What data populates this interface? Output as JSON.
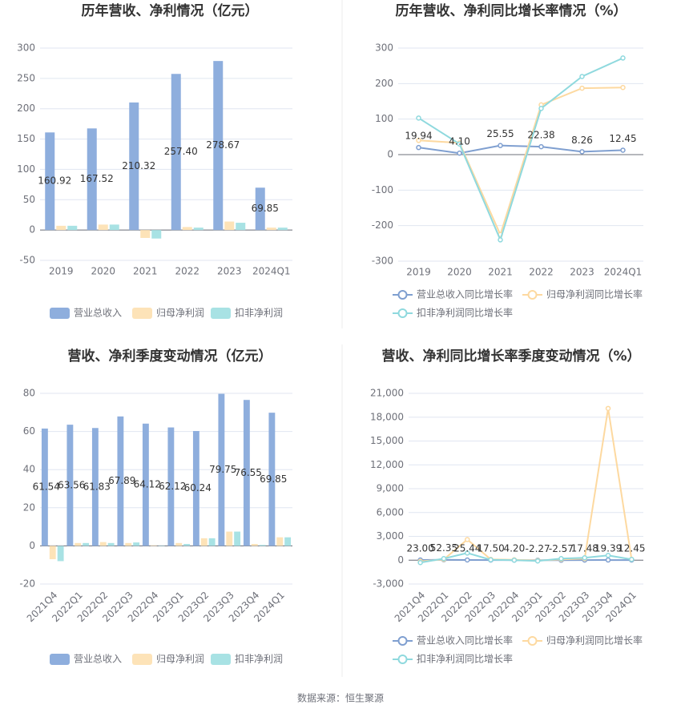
{
  "chart_data": [
    {
      "type": "bar",
      "title": "历年营收、净利情况（亿元）",
      "categories": [
        "2019",
        "2020",
        "2021",
        "2022",
        "2023",
        "2024Q1"
      ],
      "series": [
        {
          "name": "营业总收入",
          "color": "#8eaedd",
          "values": [
            160.92,
            167.52,
            210.32,
            257.4,
            278.67,
            69.85
          ],
          "value_labels": [
            "160.92",
            "167.52",
            "210.32",
            "257.40",
            "278.67",
            "69.85"
          ]
        },
        {
          "name": "归母净利润",
          "color": "#fde3b8",
          "values": [
            7,
            9,
            -13,
            5,
            14,
            4
          ]
        },
        {
          "name": "扣非净利润",
          "color": "#a8e2e4",
          "values": [
            7,
            9,
            -14,
            4,
            12,
            4
          ]
        }
      ],
      "ylim": [
        -50,
        300
      ],
      "yticks": [
        -50,
        0,
        50,
        100,
        150,
        200,
        250,
        300
      ],
      "grid": true
    },
    {
      "type": "line",
      "title": "历年营收、净利同比增长率情况（%）",
      "categories": [
        "2019",
        "2020",
        "2021",
        "2022",
        "2023",
        "2024Q1"
      ],
      "series": [
        {
          "name": "营业总收入同比增长率",
          "color": "#7f9fd0",
          "values": [
            19.94,
            4.1,
            25.55,
            22.38,
            8.26,
            12.45
          ],
          "value_labels": [
            "19.94",
            "4.10",
            "25.55",
            "22.38",
            "8.26",
            "12.45"
          ]
        },
        {
          "name": "归母净利润同比增长率",
          "color": "#fdd9a0",
          "values": [
            40,
            33,
            -225,
            140,
            187,
            189
          ]
        },
        {
          "name": "扣非净利润同比增长率",
          "color": "#8fd9de",
          "values": [
            103,
            30,
            -240,
            130,
            220,
            272
          ]
        }
      ],
      "ylim": [
        -300,
        300
      ],
      "yticks": [
        -300,
        -200,
        -100,
        0,
        100,
        200,
        300
      ],
      "grid": true
    },
    {
      "type": "bar",
      "title": "营收、净利季度变动情况（亿元）",
      "categories": [
        "2021Q4",
        "2022Q1",
        "2022Q2",
        "2022Q3",
        "2022Q4",
        "2023Q1",
        "2023Q2",
        "2023Q3",
        "2023Q4",
        "2024Q1"
      ],
      "series": [
        {
          "name": "营业总收入",
          "color": "#8eaedd",
          "values": [
            61.54,
            63.56,
            61.83,
            67.89,
            64.12,
            62.12,
            60.24,
            79.75,
            76.55,
            69.85
          ],
          "value_labels": [
            "61.54",
            "63.56",
            "61.83",
            "67.89",
            "64.12",
            "62.12",
            "60.24",
            "79.75",
            "76.55",
            "69.85"
          ]
        },
        {
          "name": "归母净利润",
          "color": "#fde3b8",
          "values": [
            -7,
            1.5,
            2,
            1.5,
            0.3,
            1.5,
            4,
            7.5,
            1,
            4.5
          ]
        },
        {
          "name": "扣非净利润",
          "color": "#a8e2e4",
          "values": [
            -8,
            1.5,
            1.5,
            1.8,
            0.2,
            1,
            4,
            7.5,
            0.5,
            4.5
          ]
        }
      ],
      "ylim": [
        -20,
        80
      ],
      "yticks": [
        -20,
        0,
        20,
        40,
        60,
        80
      ],
      "grid": true
    },
    {
      "type": "line",
      "title": "营收、净利同比增长率季度变动情况（%）",
      "categories": [
        "2021Q4",
        "2022Q1",
        "2022Q2",
        "2022Q3",
        "2022Q4",
        "2023Q1",
        "2023Q2",
        "2023Q3",
        "2023Q4",
        "2024Q1"
      ],
      "series": [
        {
          "name": "营业总收入同比增长率",
          "color": "#7f9fd0",
          "values": [
            23.0,
            52.35,
            25.44,
            17.5,
            4.2,
            -2.27,
            -2.57,
            17.48,
            19.39,
            12.45
          ],
          "value_labels": [
            "23.00",
            "52.35",
            "25.44",
            "17.50",
            "4.20",
            "-2.27",
            "-2.57",
            "17.48",
            "19.39",
            "12.45"
          ]
        },
        {
          "name": "归母净利润同比增长率",
          "color": "#fdd9a0",
          "values": [
            -150,
            100,
            2600,
            100,
            50,
            -50,
            100,
            200,
            19100,
            100
          ]
        },
        {
          "name": "扣非净利润同比增长率",
          "color": "#8fd9de",
          "values": [
            -300,
            200,
            900,
            50,
            0,
            -100,
            200,
            300,
            600,
            100
          ]
        }
      ],
      "ylim": [
        -3000,
        21000
      ],
      "yticks": [
        {
          "value": -3000,
          "label": "-3,000"
        },
        0,
        {
          "value": 3000,
          "label": "3,000"
        },
        {
          "value": 6000,
          "label": "6,000"
        },
        {
          "value": 9000,
          "label": "9,000"
        },
        {
          "value": 12000,
          "label": "12,000"
        },
        {
          "value": 15000,
          "label": "15,000"
        },
        {
          "value": 18000,
          "label": "18,000"
        },
        {
          "value": 21000,
          "label": "21,000"
        }
      ],
      "grid": true
    }
  ],
  "source": "数据来源：恒生聚源"
}
